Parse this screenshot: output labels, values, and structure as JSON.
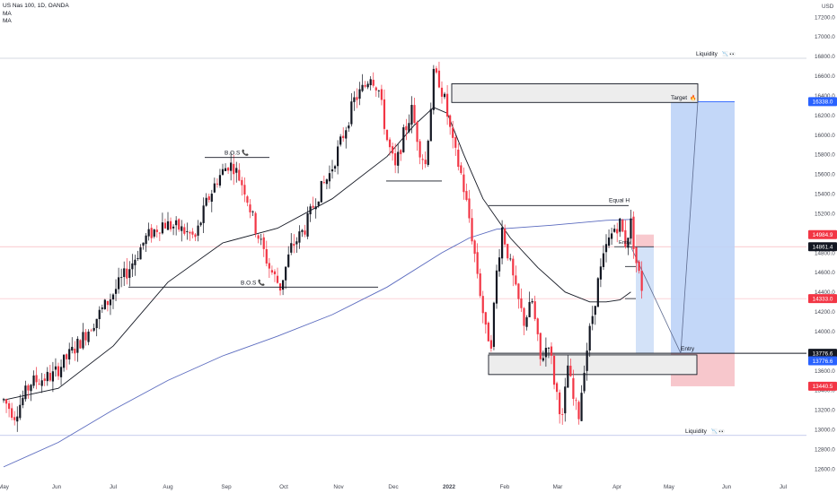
{
  "header": {
    "title": "US Nas 100, 1D, OANDA",
    "indicators": [
      "MA",
      "MA"
    ]
  },
  "chart_data": {
    "type": "candlestick",
    "currency": "USD",
    "ylim": [
      12500,
      17300
    ],
    "y_ticks": [
      12600,
      12800,
      13000,
      13200,
      13400,
      13600,
      13800,
      14000,
      14200,
      14400,
      14600,
      14800,
      15000,
      15200,
      15400,
      15600,
      15800,
      16000,
      16200,
      16400,
      16600,
      16800,
      17000,
      17200
    ],
    "x_ticks": [
      "May",
      "Jun",
      "Jul",
      "Aug",
      "Sep",
      "Oct",
      "Nov",
      "Dec",
      "2022",
      "Feb",
      "Mar",
      "Apr",
      "May",
      "Jun",
      "Jul"
    ],
    "price_path": [
      {
        "t": 0,
        "p": 13300
      },
      {
        "t": 4,
        "p": 13150
      },
      {
        "t": 10,
        "p": 13480
      },
      {
        "t": 18,
        "p": 13550
      },
      {
        "t": 28,
        "p": 13900
      },
      {
        "t": 38,
        "p": 14300
      },
      {
        "t": 46,
        "p": 14650
      },
      {
        "t": 52,
        "p": 14950
      },
      {
        "t": 58,
        "p": 15100
      },
      {
        "t": 64,
        "p": 15050
      },
      {
        "t": 70,
        "p": 14950
      },
      {
        "t": 74,
        "p": 15300
      },
      {
        "t": 78,
        "p": 15550
      },
      {
        "t": 82,
        "p": 15700
      },
      {
        "t": 84,
        "p": 15680
      },
      {
        "t": 88,
        "p": 15450
      },
      {
        "t": 92,
        "p": 15050
      },
      {
        "t": 97,
        "p": 14650
      },
      {
        "t": 101,
        "p": 14450
      },
      {
        "t": 105,
        "p": 14850
      },
      {
        "t": 110,
        "p": 15050
      },
      {
        "t": 114,
        "p": 15350
      },
      {
        "t": 119,
        "p": 15600
      },
      {
        "t": 124,
        "p": 16000
      },
      {
        "t": 128,
        "p": 16350
      },
      {
        "t": 132,
        "p": 16500
      },
      {
        "t": 134,
        "p": 16620
      },
      {
        "t": 137,
        "p": 16450
      },
      {
        "t": 140,
        "p": 15950
      },
      {
        "t": 143,
        "p": 15650
      },
      {
        "t": 146,
        "p": 16000
      },
      {
        "t": 149,
        "p": 16250
      },
      {
        "t": 152,
        "p": 15850
      },
      {
        "t": 154,
        "p": 15700
      },
      {
        "t": 157,
        "p": 16600
      },
      {
        "t": 159,
        "p": 16550
      },
      {
        "t": 161,
        "p": 16350
      },
      {
        "t": 164,
        "p": 15900
      },
      {
        "t": 167,
        "p": 15600
      },
      {
        "t": 170,
        "p": 15150
      },
      {
        "t": 173,
        "p": 14600
      },
      {
        "t": 176,
        "p": 14000
      },
      {
        "t": 178,
        "p": 13900
      },
      {
        "t": 180,
        "p": 14600
      },
      {
        "t": 182,
        "p": 15050
      },
      {
        "t": 184,
        "p": 14800
      },
      {
        "t": 187,
        "p": 14400
      },
      {
        "t": 190,
        "p": 14100
      },
      {
        "t": 193,
        "p": 14300
      },
      {
        "t": 196,
        "p": 13700
      },
      {
        "t": 199,
        "p": 13900
      },
      {
        "t": 201,
        "p": 13500
      },
      {
        "t": 204,
        "p": 13100
      },
      {
        "t": 206,
        "p": 13650
      },
      {
        "t": 208,
        "p": 13300
      },
      {
        "t": 210,
        "p": 13150
      },
      {
        "t": 212,
        "p": 13650
      },
      {
        "t": 214,
        "p": 14000
      },
      {
        "t": 217,
        "p": 14500
      },
      {
        "t": 220,
        "p": 14850
      },
      {
        "t": 223,
        "p": 15050
      },
      {
        "t": 225,
        "p": 15100
      },
      {
        "t": 227,
        "p": 14900
      },
      {
        "t": 229,
        "p": 15100
      },
      {
        "t": 231,
        "p": 14700
      },
      {
        "t": 233,
        "p": 14450
      }
    ],
    "series": [
      {
        "name": "MA",
        "color": "#131722",
        "points": [
          [
            0,
            13300
          ],
          [
            20,
            13420
          ],
          [
            40,
            13850
          ],
          [
            60,
            14500
          ],
          [
            80,
            14900
          ],
          [
            100,
            15050
          ],
          [
            120,
            15350
          ],
          [
            140,
            15780
          ],
          [
            150,
            16100
          ],
          [
            157,
            16280
          ],
          [
            162,
            16220
          ],
          [
            168,
            15800
          ],
          [
            175,
            15350
          ],
          [
            185,
            14950
          ],
          [
            195,
            14650
          ],
          [
            205,
            14400
          ],
          [
            214,
            14300
          ],
          [
            220,
            14300
          ],
          [
            225,
            14320
          ],
          [
            229,
            14400
          ]
        ]
      },
      {
        "name": "MA",
        "color": "#5b6bbf",
        "points": [
          [
            0,
            12620
          ],
          [
            20,
            12870
          ],
          [
            40,
            13200
          ],
          [
            60,
            13500
          ],
          [
            80,
            13750
          ],
          [
            100,
            13950
          ],
          [
            120,
            14170
          ],
          [
            140,
            14450
          ],
          [
            160,
            14800
          ],
          [
            170,
            14950
          ],
          [
            180,
            15040
          ],
          [
            200,
            15080
          ],
          [
            220,
            15130
          ],
          [
            230,
            15140
          ]
        ]
      }
    ],
    "annotations": {
      "bos_1": {
        "label": "B.O.S",
        "icon": "📞",
        "price": 15770
      },
      "bos_2": {
        "label": "B.O.S",
        "icon": "📞",
        "price": 14450
      },
      "equal_h": {
        "label": "Equal H",
        "price": 15280
      },
      "liquidity_top": {
        "label": "Liquidity",
        "icon": "📉 👀",
        "price": 16780
      },
      "liquidity_bottom": {
        "label": "Liquidity",
        "icon": "📉 👀",
        "price": 12940
      },
      "target": {
        "label": "Target",
        "icon": "🔥",
        "zone": [
          16330,
          16520
        ]
      },
      "entry_main": {
        "label": "Entry",
        "price": 13776.6
      },
      "entry_small": {
        "label": "Entry",
        "price": 14861.4
      },
      "demand_zone": [
        13560,
        13760
      ],
      "small_high_line": 15530
    },
    "price_labels": [
      {
        "text": "16338.0",
        "bg": "#2962ff",
        "fg": "#ffffff",
        "price": 16338
      },
      {
        "text": "14984.9",
        "bg": "#f23645",
        "fg": "#ffffff",
        "price": 14984.9
      },
      {
        "text": "14861.4",
        "bg": "#131722",
        "fg": "#ffffff",
        "price": 14861.4
      },
      {
        "text": "14333.0",
        "bg": "#f23645",
        "fg": "#ffffff",
        "price": 14333
      },
      {
        "text": "13776.6",
        "bg": "#131722",
        "fg": "#ffffff",
        "price": 13776.6
      },
      {
        "text": "13776.6",
        "bg": "#2962ff",
        "fg": "#ffffff",
        "price": 13700
      },
      {
        "text": "13440.5",
        "bg": "#f23645",
        "fg": "#ffffff",
        "price": 13440.5
      }
    ]
  }
}
